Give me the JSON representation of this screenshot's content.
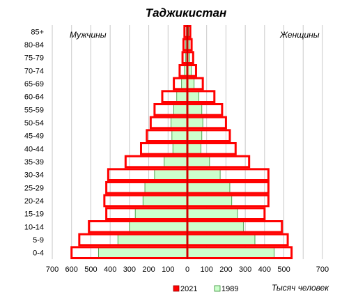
{
  "chart_data": {
    "type": "bar",
    "subtype": "population-pyramid",
    "title": "Таджикистан",
    "left_label": "Мужчины",
    "right_label": "Женщины",
    "unit_label": "Тысяч человек",
    "categories": [
      "0-4",
      "5-9",
      "10-14",
      "15-19",
      "20-24",
      "25-29",
      "30-34",
      "35-39",
      "40-44",
      "45-49",
      "50-54",
      "55-59",
      "60-64",
      "65-69",
      "70-74",
      "75-79",
      "80-84",
      "85+"
    ],
    "x_ticks": [
      "700",
      "600",
      "500",
      "400",
      "300",
      "200",
      "100",
      "0",
      "100",
      "200",
      "300",
      "400",
      "500",
      "700"
    ],
    "xlim": [
      -700,
      700
    ],
    "grid": true,
    "legend_position": "bottom",
    "series": [
      {
        "name": "2021",
        "style": "outline",
        "color": "#ff0000",
        "male": [
          600,
          560,
          510,
          420,
          430,
          420,
          410,
          320,
          240,
          210,
          190,
          170,
          130,
          70,
          40,
          25,
          20,
          15
        ],
        "female": [
          540,
          520,
          490,
          400,
          420,
          420,
          420,
          320,
          250,
          220,
          200,
          180,
          140,
          80,
          45,
          30,
          22,
          15
        ]
      },
      {
        "name": "1989",
        "style": "filled",
        "color": "#ccffcc",
        "male": [
          460,
          360,
          300,
          270,
          230,
          220,
          170,
          120,
          75,
          80,
          85,
          70,
          55,
          30,
          15,
          10,
          8,
          5
        ],
        "female": [
          450,
          350,
          290,
          260,
          230,
          220,
          170,
          115,
          70,
          75,
          80,
          75,
          60,
          35,
          20,
          12,
          10,
          6
        ]
      }
    ]
  }
}
